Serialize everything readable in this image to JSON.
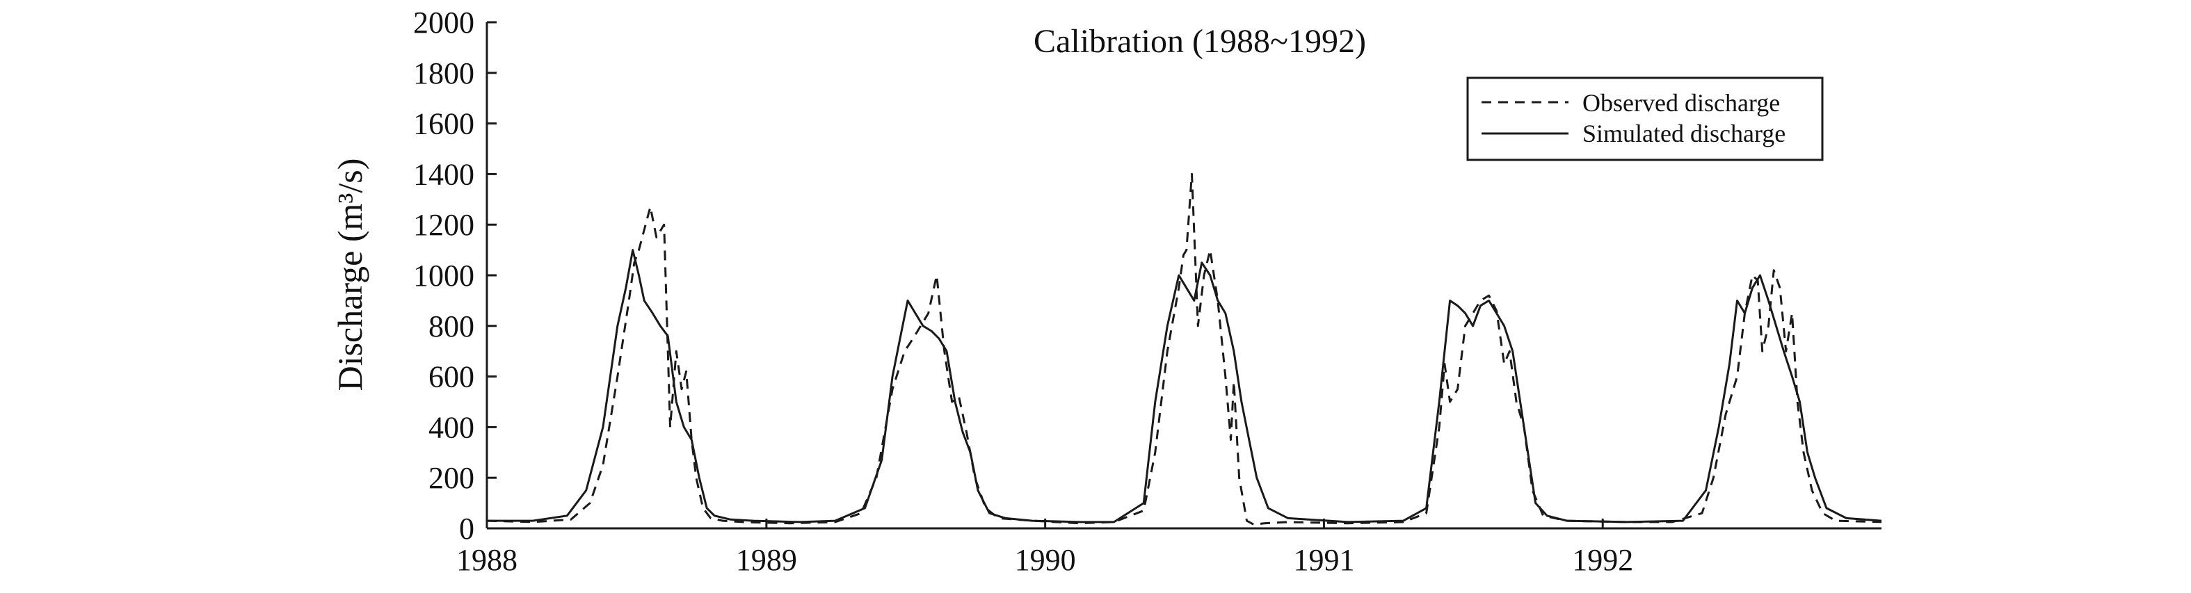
{
  "chart_data": {
    "type": "line",
    "title": "Calibration (1988~1992)",
    "xlabel": "",
    "ylabel": "Discharge (m³/s)",
    "ylim": [
      0,
      2000
    ],
    "yticks": [
      0,
      200,
      400,
      600,
      800,
      1000,
      1200,
      1400,
      1600,
      1800,
      2000
    ],
    "xlim": [
      "1988-01-01",
      "1992-12-31"
    ],
    "xticks": [
      "1988",
      "1989",
      "1990",
      "1991",
      "1992"
    ],
    "grid": false,
    "legend_position": "top-right",
    "colors": {
      "line": "#1a1a1a",
      "axis": "#1a1a1a",
      "background": "#ffffff"
    },
    "series": [
      {
        "name": "Observed discharge",
        "style": "dashed",
        "x": [
          "1988-01-01",
          "1988-03-01",
          "1988-04-20",
          "1988-05-15",
          "1988-06-01",
          "1988-06-20",
          "1988-07-05",
          "1988-07-12",
          "1988-07-18",
          "1988-07-25",
          "1988-08-02",
          "1988-08-10",
          "1988-08-20",
          "1988-08-28",
          "1988-09-05",
          "1988-09-12",
          "1988-09-18",
          "1988-09-25",
          "1988-10-01",
          "1988-10-10",
          "1988-10-20",
          "1988-11-05",
          "1988-12-01",
          "1989-02-01",
          "1989-04-01",
          "1989-05-05",
          "1989-05-25",
          "1989-06-15",
          "1989-07-01",
          "1989-07-12",
          "1989-07-22",
          "1989-08-01",
          "1989-08-12",
          "1989-08-22",
          "1989-09-01",
          "1989-09-10",
          "1989-09-20",
          "1989-10-01",
          "1989-10-15",
          "1989-11-01",
          "1989-12-15",
          "1990-02-15",
          "1990-04-01",
          "1990-05-10",
          "1990-05-25",
          "1990-06-10",
          "1990-06-25",
          "1990-07-01",
          "1990-07-05",
          "1990-07-12",
          "1990-07-20",
          "1990-07-28",
          "1990-08-05",
          "1990-08-15",
          "1990-08-25",
          "1990-09-01",
          "1990-09-05",
          "1990-09-12",
          "1990-09-22",
          "1990-10-01",
          "1990-10-15",
          "1990-11-15",
          "1991-02-01",
          "1991-04-15",
          "1991-05-15",
          "1991-06-01",
          "1991-06-08",
          "1991-06-15",
          "1991-06-25",
          "1991-07-05",
          "1991-07-15",
          "1991-07-25",
          "1991-08-05",
          "1991-08-15",
          "1991-08-25",
          "1991-09-01",
          "1991-09-10",
          "1991-09-20",
          "1991-10-01",
          "1991-10-15",
          "1991-11-15",
          "1992-02-01",
          "1992-04-01",
          "1992-05-10",
          "1992-05-25",
          "1992-06-10",
          "1992-06-25",
          "1992-07-05",
          "1992-07-15",
          "1992-07-22",
          "1992-07-28",
          "1992-08-05",
          "1992-08-12",
          "1992-08-20",
          "1992-08-28",
          "1992-09-05",
          "1992-09-12",
          "1992-09-20",
          "1992-10-01",
          "1992-10-15",
          "1992-11-01",
          "1992-12-31"
        ],
        "y": [
          30,
          25,
          35,
          100,
          250,
          600,
          900,
          1050,
          1100,
          1180,
          1270,
          1150,
          1200,
          400,
          700,
          550,
          620,
          350,
          200,
          80,
          40,
          30,
          25,
          20,
          25,
          60,
          200,
          550,
          700,
          750,
          800,
          850,
          1000,
          700,
          500,
          520,
          380,
          200,
          80,
          40,
          30,
          20,
          25,
          70,
          300,
          700,
          950,
          1080,
          1100,
          1400,
          800,
          1000,
          1100,
          900,
          600,
          350,
          580,
          200,
          30,
          15,
          20,
          25,
          20,
          25,
          60,
          400,
          650,
          500,
          550,
          800,
          850,
          900,
          920,
          860,
          650,
          700,
          500,
          400,
          150,
          50,
          30,
          25,
          25,
          60,
          200,
          450,
          600,
          850,
          1000,
          980,
          700,
          800,
          1020,
          950,
          700,
          850,
          500,
          300,
          150,
          60,
          30,
          25
        ]
      },
      {
        "name": "Simulated discharge",
        "style": "solid",
        "x": [
          "1988-01-01",
          "1988-03-01",
          "1988-04-15",
          "1988-05-10",
          "1988-06-01",
          "1988-06-20",
          "1988-07-01",
          "1988-07-10",
          "1988-07-18",
          "1988-07-25",
          "1988-08-05",
          "1988-08-15",
          "1988-08-25",
          "1988-09-05",
          "1988-09-15",
          "1988-09-25",
          "1988-10-05",
          "1988-10-15",
          "1988-10-25",
          "1988-11-15",
          "1988-12-15",
          "1989-02-15",
          "1989-04-01",
          "1989-05-10",
          "1989-06-01",
          "1989-06-15",
          "1989-06-25",
          "1989-07-05",
          "1989-07-15",
          "1989-07-25",
          "1989-08-05",
          "1989-08-15",
          "1989-08-25",
          "1989-09-05",
          "1989-09-15",
          "1989-09-25",
          "1989-10-05",
          "1989-10-20",
          "1989-11-10",
          "1989-12-15",
          "1990-02-15",
          "1990-04-01",
          "1990-05-10",
          "1990-05-25",
          "1990-06-10",
          "1990-06-25",
          "1990-07-05",
          "1990-07-15",
          "1990-07-25",
          "1990-08-05",
          "1990-08-15",
          "1990-08-25",
          "1990-09-05",
          "1990-09-15",
          "1990-09-25",
          "1990-10-05",
          "1990-10-20",
          "1990-11-15",
          "1991-02-01",
          "1991-04-15",
          "1991-05-15",
          "1991-06-01",
          "1991-06-15",
          "1991-06-25",
          "1991-07-05",
          "1991-07-15",
          "1991-07-25",
          "1991-08-05",
          "1991-08-15",
          "1991-08-25",
          "1991-09-05",
          "1991-09-15",
          "1991-09-25",
          "1991-10-05",
          "1991-10-20",
          "1991-11-15",
          "1992-02-01",
          "1992-04-15",
          "1992-05-15",
          "1992-06-01",
          "1992-06-15",
          "1992-06-25",
          "1992-07-05",
          "1992-07-15",
          "1992-07-25",
          "1992-08-05",
          "1992-08-15",
          "1992-08-25",
          "1992-09-05",
          "1992-09-15",
          "1992-09-25",
          "1992-10-05",
          "1992-10-20",
          "1992-11-15",
          "1992-12-31"
        ],
        "y": [
          30,
          30,
          50,
          150,
          400,
          800,
          950,
          1100,
          1000,
          900,
          850,
          800,
          760,
          500,
          400,
          350,
          200,
          80,
          50,
          35,
          30,
          25,
          30,
          80,
          270,
          600,
          750,
          900,
          850,
          800,
          780,
          750,
          700,
          500,
          380,
          300,
          150,
          60,
          40,
          30,
          25,
          25,
          100,
          500,
          800,
          1000,
          950,
          900,
          1050,
          1000,
          900,
          850,
          700,
          500,
          350,
          200,
          80,
          40,
          25,
          30,
          80,
          500,
          900,
          880,
          850,
          800,
          880,
          900,
          850,
          800,
          700,
          500,
          300,
          100,
          50,
          30,
          25,
          30,
          150,
          400,
          650,
          900,
          850,
          950,
          1000,
          900,
          800,
          700,
          600,
          500,
          300,
          200,
          80,
          40,
          30
        ]
      }
    ]
  }
}
